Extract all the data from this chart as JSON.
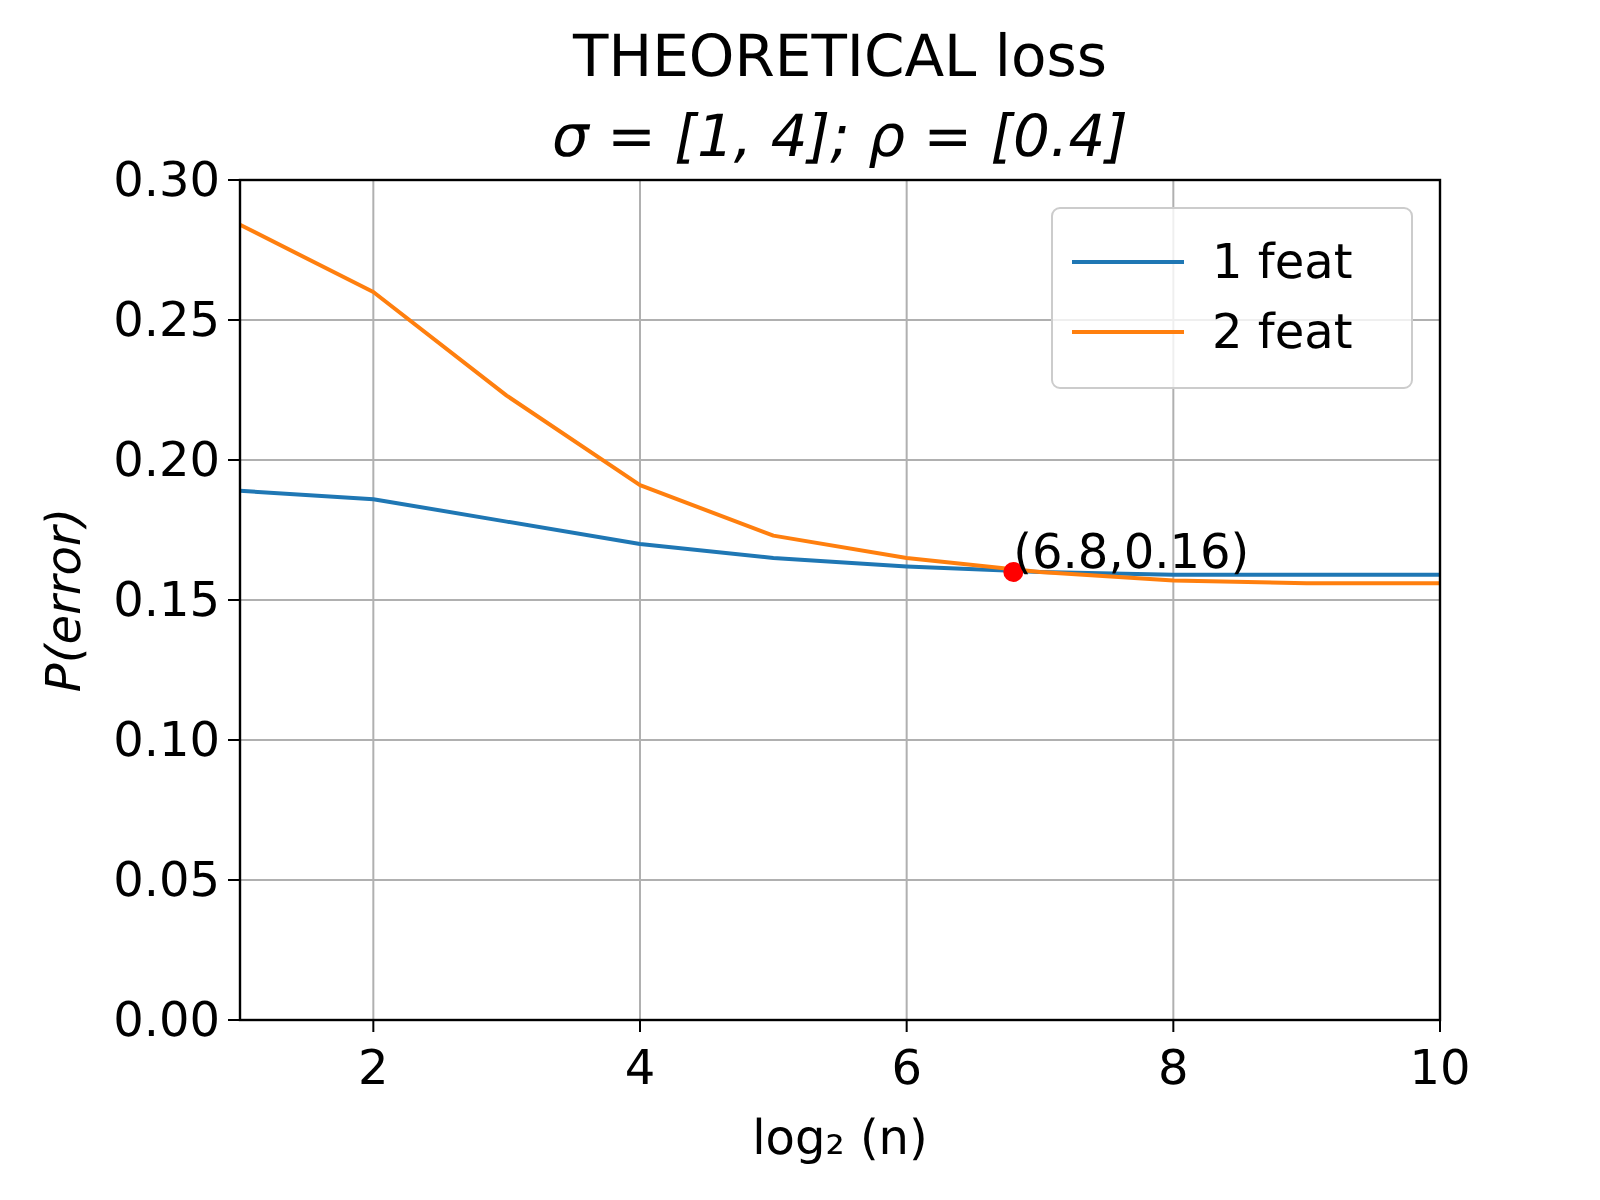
{
  "chart_data": {
    "type": "line",
    "title": "THEORETICAL loss",
    "subtitle": "σ = [1, 4];  ρ = [0.4]",
    "xlabel": "log₂ (n)",
    "ylabel": "P(error)",
    "x": [
      1,
      2,
      3,
      4,
      5,
      6,
      7,
      8,
      9,
      10
    ],
    "series": [
      {
        "name": "1 feat",
        "color": "#1f77b4",
        "values": [
          0.189,
          0.186,
          0.178,
          0.17,
          0.165,
          0.162,
          0.16,
          0.159,
          0.159,
          0.159
        ]
      },
      {
        "name": "2 feat",
        "color": "#ff7f0e",
        "values": [
          0.284,
          0.26,
          0.223,
          0.191,
          0.173,
          0.165,
          0.16,
          0.157,
          0.156,
          0.156
        ]
      },
      {
        "type": "scatter",
        "color": "#ff0000",
        "x": [
          6.8
        ],
        "values": [
          0.16
        ],
        "marker": "circle"
      }
    ],
    "annotations": [
      {
        "text": "(6.8,0.16)",
        "x": 6.8,
        "y": 0.16
      }
    ],
    "xlim": [
      1,
      10
    ],
    "xticks": [
      2,
      4,
      6,
      8,
      10
    ],
    "ylim": [
      0,
      0.3
    ],
    "yticks": [
      {
        "value": 0,
        "label": "0.00"
      },
      {
        "value": 0.05,
        "label": "0.05"
      },
      {
        "value": 0.1,
        "label": "0.10"
      },
      {
        "value": 0.15,
        "label": "0.15"
      },
      {
        "value": 0.2,
        "label": "0.20"
      },
      {
        "value": 0.25,
        "label": "0.25"
      },
      {
        "value": 0.3,
        "label": "0.30"
      }
    ],
    "grid": true,
    "legend": "top right",
    "line_style": "solid"
  }
}
